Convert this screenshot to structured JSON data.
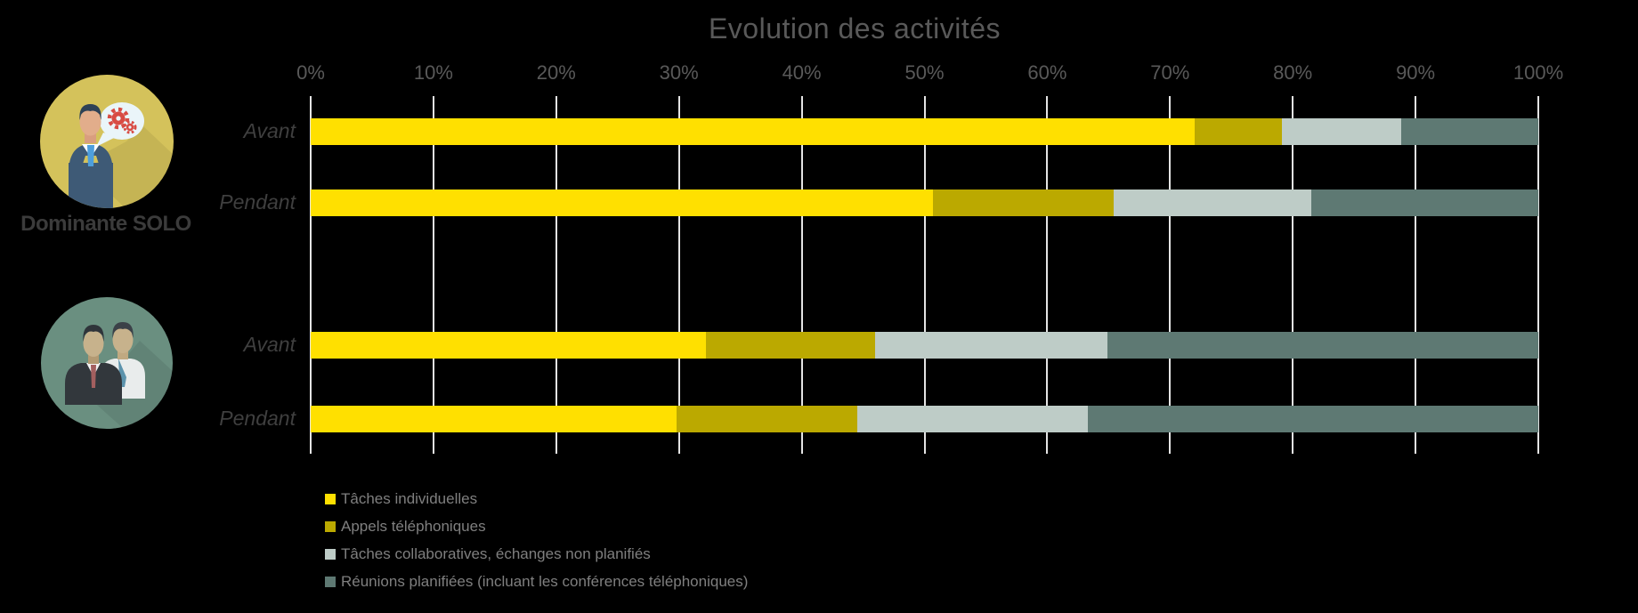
{
  "title": "Evolution des activités",
  "groups": [
    {
      "label": "Dominante SOLO",
      "icon": "businessman-speech-bubble-icon",
      "rows": [
        0,
        1
      ]
    },
    {
      "label": "",
      "icon": "two-businessmen-icon",
      "rows": [
        2,
        3
      ]
    }
  ],
  "colors": {
    "background": "#000000",
    "title_text": "#595959",
    "tick_text": "#595959",
    "row_label_text": "#3F3F3F",
    "group_label_text": "#3B3B3B",
    "legend_text": "#7F7F7F",
    "gridline": "#E4E4E4",
    "solo_circle": "#D4C25B",
    "duo_circle": "#6A8F80",
    "series": [
      "#FFE000",
      "#BBA900",
      "#BECCC7",
      "#5E7973"
    ]
  },
  "chart_data": {
    "type": "bar",
    "orientation": "horizontal",
    "stacked": true,
    "title": "Evolution des activités",
    "categories": [
      "Avant",
      "Pendant",
      "Avant",
      "Pendant"
    ],
    "category_groups": [
      "Dominante SOLO",
      "Dominante SOLO",
      "",
      ""
    ],
    "series": [
      {
        "name": "Tâches individuelles",
        "color": "#FFE000",
        "values": [
          72,
          50.7,
          32.2,
          29.8
        ]
      },
      {
        "name": "Appels téléphoniques",
        "color": "#BBA900",
        "values": [
          7.1,
          14.7,
          13.8,
          14.7
        ]
      },
      {
        "name": "Tâches collaboratives, échanges non planifiés",
        "color": "#BECCC7",
        "values": [
          9.7,
          16.1,
          18.9,
          18.8
        ]
      },
      {
        "name": "Réunions planifiées (incluant les conférences téléphoniques)",
        "color": "#5E7973",
        "values": [
          11.2,
          18.5,
          35.1,
          36.7
        ]
      }
    ],
    "xlabel": "",
    "ylabel": "",
    "xlim": [
      0,
      100
    ],
    "x_ticks": [
      "0%",
      "10%",
      "20%",
      "30%",
      "40%",
      "50%",
      "60%",
      "70%",
      "80%",
      "90%",
      "100%"
    ],
    "grid": true,
    "legend_position": "bottom-left"
  }
}
